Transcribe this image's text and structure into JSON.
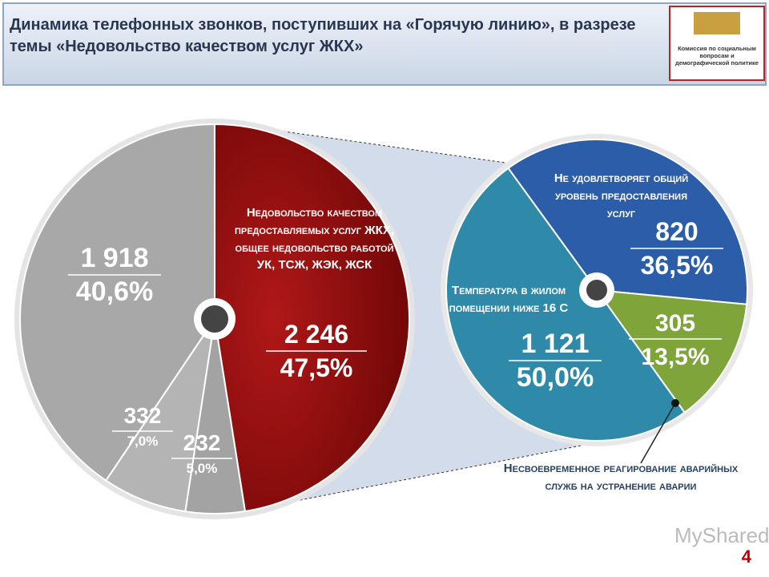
{
  "header": {
    "title": "Динамика телефонных звонков, поступивших на «Горячую линию», в разрезе темы «Недовольство качеством услуг ЖКХ»",
    "logo_text": "Комиссия по социальным вопросам и демографической политике"
  },
  "chart_data": [
    {
      "type": "pie",
      "categories": [
        "Недовольство качеством предоставляемых услуг ЖКХ, общее недовольство работой УК, ТСЖ, ЖЭК, ЖСК",
        null,
        null,
        null
      ],
      "values": [
        2246,
        232,
        332,
        1918
      ],
      "value_labels": [
        "2 246",
        "232",
        "332",
        "1 918"
      ],
      "percents": [
        47.5,
        5.0,
        7.0,
        40.6
      ],
      "percent_labels": [
        "47,5%",
        "5,0%",
        "7,0%",
        "40,6%"
      ],
      "colors": [
        "#8e0c0c",
        "#a3a3a3",
        "#b4b4b4",
        "#a8a8a8"
      ]
    },
    {
      "type": "pie",
      "categories": [
        "Не удовлетворяет общий уровень предоставления услуг",
        "Несвоевременное реагирование аварийных служб на устранение аварии",
        "Температура в жилом помещении ниже 16 С"
      ],
      "values": [
        820,
        305,
        1121
      ],
      "value_labels": [
        "820",
        "305",
        "1 121"
      ],
      "percents": [
        36.5,
        13.5,
        50.0
      ],
      "percent_labels": [
        "36,5%",
        "13,5%",
        "50,0%"
      ],
      "colors": [
        "#2b5da9",
        "#7ea43a",
        "#2f8aa9"
      ]
    }
  ],
  "page_number": 4,
  "watermark": "MyShared"
}
